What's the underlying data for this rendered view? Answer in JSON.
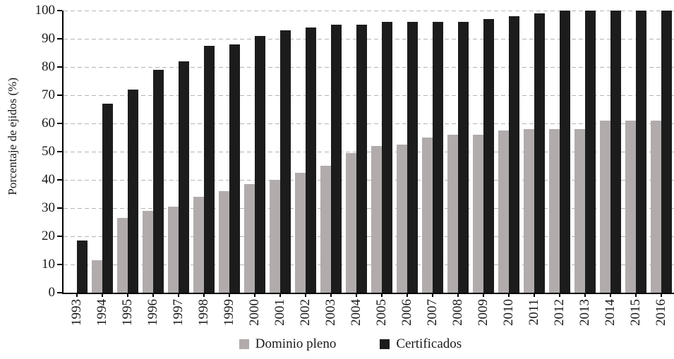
{
  "chart_data": {
    "type": "bar",
    "title": "",
    "xlabel": "",
    "ylabel": "Porcentaje de ejidos (%)",
    "ylim": [
      0,
      100
    ],
    "ytick_step": 10,
    "grid": "horizontal dashed",
    "legend_position": "bottom center",
    "categories": [
      "1993",
      "1994",
      "1995",
      "1996",
      "1997",
      "1998",
      "1999",
      "2000",
      "2001",
      "2002",
      "2003",
      "2004",
      "2005",
      "2006",
      "2007",
      "2008",
      "2009",
      "2010",
      "2011",
      "2012",
      "2013",
      "2014",
      "2015",
      "2016"
    ],
    "series": [
      {
        "name": "Dominio pleno",
        "color": "#b1abab",
        "values": [
          0,
          11.5,
          26.5,
          29,
          30.5,
          34,
          36,
          38.5,
          40,
          42.5,
          45,
          49.5,
          52,
          52.5,
          55,
          56,
          56,
          57.5,
          58,
          58,
          58,
          61,
          61,
          61
        ]
      },
      {
        "name": "Certificados",
        "color": "#1c1c1c",
        "values": [
          18.5,
          67,
          72,
          79,
          82,
          87.5,
          88,
          91,
          93,
          94,
          95,
          95,
          96,
          96,
          96,
          96,
          97,
          98,
          99,
          100,
          100,
          100,
          100,
          100
        ]
      }
    ],
    "colors": {
      "axis": "#000000",
      "gridline": "#b4b4b4",
      "text": "#1a1a1a",
      "background": "#ffffff"
    }
  }
}
